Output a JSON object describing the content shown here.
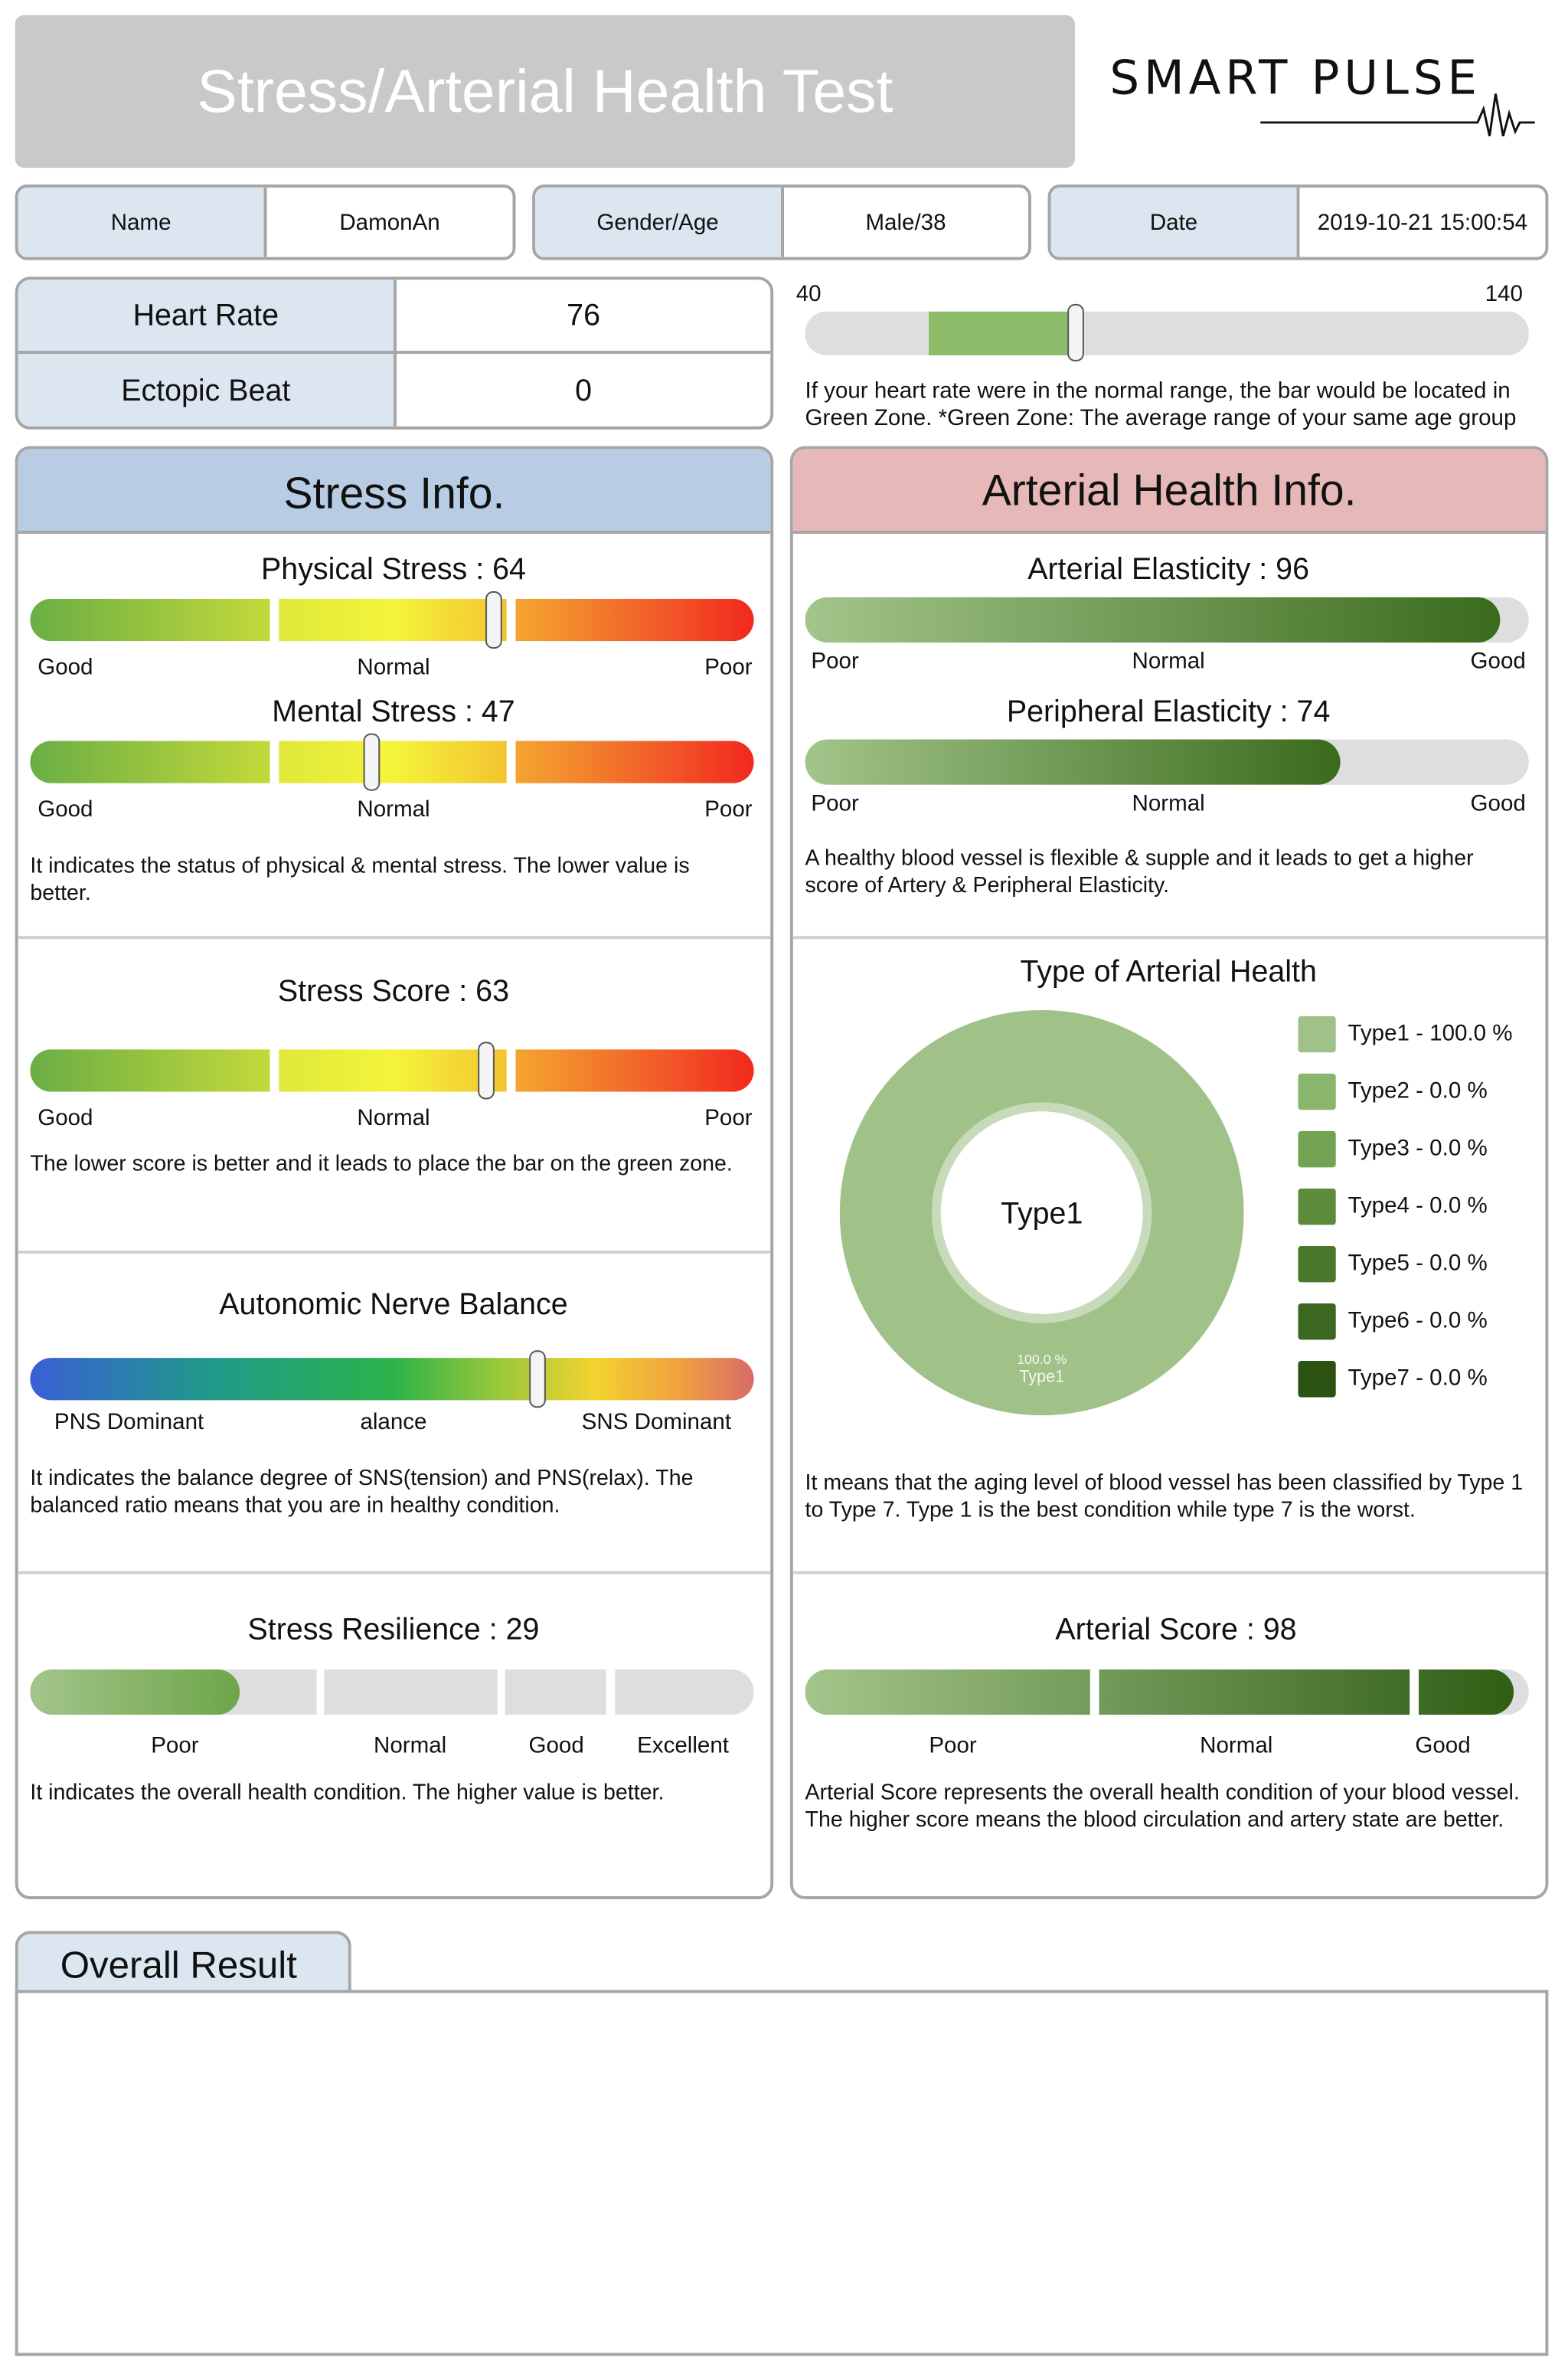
{
  "header": {
    "title": "Stress/Arterial Health Test",
    "logo": "SMART PULSE"
  },
  "info": [
    {
      "label": "Name",
      "value": "DamonAn"
    },
    {
      "label": "Gender/Age",
      "value": "Male/38"
    },
    {
      "label": "Date",
      "value": "2019-10-21 15:00:54"
    }
  ],
  "vitals": {
    "heart_rate_label": "Heart Rate",
    "heart_rate": "76",
    "ectopic_label": "Ectopic Beat",
    "ectopic": "0"
  },
  "hr_bar": {
    "min": "40",
    "max": "140",
    "value": 76,
    "green_zone": [
      57,
      77
    ],
    "note1": "If your heart rate were in the normal range, the bar would be located in",
    "note2": "Green Zone. *Green Zone: The average range of your same age group"
  },
  "stress": {
    "title": "Stress Info.",
    "physical": {
      "label": "Physical Stress : 64",
      "value": 64
    },
    "mental": {
      "label": "Mental Stress : 47",
      "value": 47
    },
    "scale_labels": [
      "Good",
      "Normal",
      "Poor"
    ],
    "desc1": "It indicates the status of physical & mental stress. The lower value is better.",
    "score": {
      "label": "Stress Score : 63",
      "value": 63,
      "desc": "The lower score is better and it leads to place the bar on the green zone."
    },
    "anb": {
      "label": "Autonomic Nerve Balance",
      "value": 70,
      "labels": [
        "PNS Dominant",
        "alance",
        "SNS Dominant"
      ],
      "desc": "It indicates the balance degree of SNS(tension) and PNS(relax). The balanced ratio means that you are in healthy condition."
    },
    "resilience": {
      "label": "Stress Resilience : 29",
      "value": 29,
      "labels": [
        "Poor",
        "Normal",
        "Good",
        "Excellent"
      ],
      "desc": "It indicates the overall health condition. The higher value is better."
    }
  },
  "arterial": {
    "title": "Arterial Health Info.",
    "elasticity": {
      "label": "Arterial Elasticity : 96",
      "value": 96
    },
    "peripheral": {
      "label": "Peripheral Elasticity : 74",
      "value": 74
    },
    "scale_labels": [
      "Poor",
      "Normal",
      "Good"
    ],
    "desc1": "A healthy blood vessel is flexible & supple and it leads to get a higher score of Artery & Peripheral Elasticity.",
    "type_desc": "It means that the aging level of blood vessel has been classified by Type 1 to Type 7. Type 1 is the best condition while type 7 is the worst.",
    "score": {
      "label": "Arterial Score : 98",
      "value": 98,
      "labels": [
        "Poor",
        "Normal",
        "Good"
      ],
      "desc": "Arterial Score represents the overall health condition of your blood vessel. The higher score means the blood circulation and artery state are better."
    }
  },
  "chart_data": {
    "type": "pie",
    "title": "Type of Arterial Health",
    "center_label": "Type1",
    "slice_label": {
      "percent": "100.0 %",
      "name": "Type1"
    },
    "categories": [
      "Type1",
      "Type2",
      "Type3",
      "Type4",
      "Type5",
      "Type6",
      "Type7"
    ],
    "values": [
      100.0,
      0.0,
      0.0,
      0.0,
      0.0,
      0.0,
      0.0
    ],
    "legend": [
      "Type1 - 100.0 %",
      "Type2 - 0.0 %",
      "Type3 - 0.0 %",
      "Type4 - 0.0 %",
      "Type5 - 0.0 %",
      "Type6 - 0.0 %",
      "Type7 - 0.0 %"
    ],
    "colors": [
      "#a0c288",
      "#8ab56c",
      "#72a352",
      "#5c8c3a",
      "#4a792b",
      "#3c6720",
      "#2c5212"
    ],
    "legend_placement": "right"
  },
  "overall": {
    "title": "Overall Result"
  }
}
